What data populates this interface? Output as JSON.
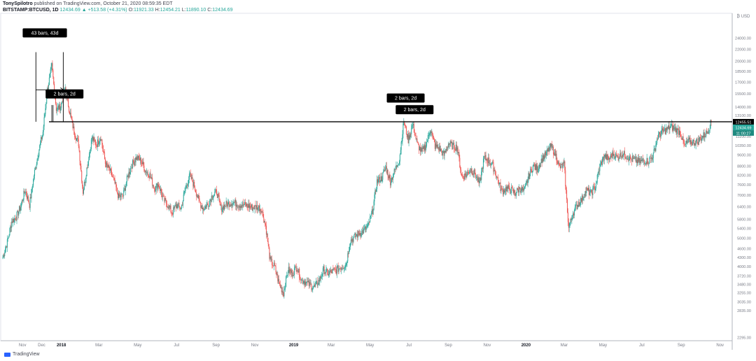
{
  "header": {
    "author": "TonySpilotro",
    "published_text": "published on TradingView.com, October 21, 2020 08:59:35 EDT",
    "symbol": "BITSTAMP:BTCUSD, 1D",
    "price": "12434.69",
    "change": "+513.58 (+4.31%)",
    "open": "11921.33",
    "high": "12454.21",
    "low": "11890.10",
    "close": "12434.69",
    "label_o": "O:",
    "label_h": "H:",
    "label_l": "L:",
    "label_c": "C:"
  },
  "footer": {
    "logo_text": "TradingView"
  },
  "colors": {
    "up": "#26a69a",
    "down": "#ef5350",
    "line": "#000000",
    "tag_bg": "#000000"
  },
  "chart_data": {
    "type": "candlestick",
    "currency_label": "₿ USD",
    "x_ticks": [
      "Nov",
      "Dec",
      "2018",
      "Mar",
      "May",
      "Jul",
      "Sep",
      "Nov",
      "2019",
      "Mar",
      "May",
      "Jul",
      "Sep",
      "Nov",
      "2020",
      "Mar",
      "May",
      "Jul",
      "Sep",
      "Nov"
    ],
    "x_range": [
      "2017-10-01",
      "2020-11-20"
    ],
    "y_ticks": [
      2295,
      2835,
      3035,
      3255,
      3480,
      3720,
      4000,
      4300,
      4600,
      5000,
      5400,
      5800,
      6400,
      7000,
      7600,
      8200,
      8800,
      9600,
      10350,
      11100,
      12100,
      13100,
      14000,
      15500,
      17000,
      18500,
      20000,
      22000,
      24000
    ],
    "y_scale": "log",
    "y_range": [
      2250,
      29000
    ],
    "price_labels": [
      {
        "value": 12455.51,
        "text": "12455.51",
        "style": "line"
      },
      {
        "value": 12434.69,
        "text": "12434.69",
        "style": "up"
      },
      {
        "value": 11900.27,
        "text": "11:00:27",
        "style": "up-dark"
      }
    ],
    "horizontal_line": {
      "value": 12455.51
    },
    "annotations": [
      {
        "text": "43 bars, 43d",
        "date": "2017-12-06",
        "price": 25000
      },
      {
        "text": "2 bars, 2d",
        "date": "2018-01-06",
        "price": 15500
      },
      {
        "text": "2 bars, 2d",
        "date": "2019-06-26",
        "price": 15000
      },
      {
        "text": "2 bars, 2d",
        "date": "2019-07-10",
        "price": 13700
      }
    ],
    "date_range_measure": {
      "start": "2017-11-22",
      "end": "2018-01-04",
      "from_price": 12455.51,
      "to_price": 21500,
      "arrow_price": 16000
    },
    "bars_2d_1": {
      "start": "2017-12-17",
      "end": "2017-12-19"
    },
    "series": [
      {
        "date": "2017-10-01",
        "close": 4300
      },
      {
        "date": "2017-10-08",
        "close": 4850
      },
      {
        "date": "2017-10-15",
        "close": 5700
      },
      {
        "date": "2017-10-22",
        "close": 5900
      },
      {
        "date": "2017-10-29",
        "close": 6400
      },
      {
        "date": "2017-11-05",
        "close": 7300
      },
      {
        "date": "2017-11-12",
        "close": 6500
      },
      {
        "date": "2017-11-19",
        "close": 8200
      },
      {
        "date": "2017-11-26",
        "close": 9800
      },
      {
        "date": "2017-12-03",
        "close": 11500
      },
      {
        "date": "2017-12-10",
        "close": 16000
      },
      {
        "date": "2017-12-17",
        "close": 19300
      },
      {
        "date": "2017-12-24",
        "close": 13800
      },
      {
        "date": "2017-12-31",
        "close": 14000
      },
      {
        "date": "2018-01-07",
        "close": 16200
      },
      {
        "date": "2018-01-14",
        "close": 13500
      },
      {
        "date": "2018-01-21",
        "close": 11500
      },
      {
        "date": "2018-01-28",
        "close": 10500
      },
      {
        "date": "2018-02-04",
        "close": 7200
      },
      {
        "date": "2018-02-11",
        "close": 8900
      },
      {
        "date": "2018-02-18",
        "close": 11000
      },
      {
        "date": "2018-02-25",
        "close": 10400
      },
      {
        "date": "2018-03-04",
        "close": 11100
      },
      {
        "date": "2018-03-11",
        "close": 9000
      },
      {
        "date": "2018-03-18",
        "close": 8500
      },
      {
        "date": "2018-03-25",
        "close": 7800
      },
      {
        "date": "2018-04-01",
        "close": 6900
      },
      {
        "date": "2018-04-08",
        "close": 7000
      },
      {
        "date": "2018-04-15",
        "close": 8100
      },
      {
        "date": "2018-04-22",
        "close": 8900
      },
      {
        "date": "2018-04-29",
        "close": 9400
      },
      {
        "date": "2018-05-06",
        "close": 9200
      },
      {
        "date": "2018-05-13",
        "close": 8500
      },
      {
        "date": "2018-05-20",
        "close": 8200
      },
      {
        "date": "2018-05-27",
        "close": 7400
      },
      {
        "date": "2018-06-03",
        "close": 7600
      },
      {
        "date": "2018-06-10",
        "close": 6800
      },
      {
        "date": "2018-06-17",
        "close": 6500
      },
      {
        "date": "2018-06-24",
        "close": 6100
      },
      {
        "date": "2018-07-01",
        "close": 6500
      },
      {
        "date": "2018-07-08",
        "close": 6300
      },
      {
        "date": "2018-07-15",
        "close": 7400
      },
      {
        "date": "2018-07-22",
        "close": 8200
      },
      {
        "date": "2018-07-29",
        "close": 7500
      },
      {
        "date": "2018-08-05",
        "close": 6700
      },
      {
        "date": "2018-08-12",
        "close": 6300
      },
      {
        "date": "2018-08-19",
        "close": 6500
      },
      {
        "date": "2018-08-26",
        "close": 7000
      },
      {
        "date": "2018-09-02",
        "close": 7200
      },
      {
        "date": "2018-09-09",
        "close": 6300
      },
      {
        "date": "2018-09-16",
        "close": 6500
      },
      {
        "date": "2018-09-23",
        "close": 6600
      },
      {
        "date": "2018-09-30",
        "close": 6600
      },
      {
        "date": "2018-10-07",
        "close": 6500
      },
      {
        "date": "2018-10-14",
        "close": 6500
      },
      {
        "date": "2018-10-21",
        "close": 6450
      },
      {
        "date": "2018-10-28",
        "close": 6350
      },
      {
        "date": "2018-11-04",
        "close": 6400
      },
      {
        "date": "2018-11-11",
        "close": 6300
      },
      {
        "date": "2018-11-18",
        "close": 5500
      },
      {
        "date": "2018-11-25",
        "close": 4200
      },
      {
        "date": "2018-12-02",
        "close": 4000
      },
      {
        "date": "2018-12-09",
        "close": 3500
      },
      {
        "date": "2018-12-16",
        "close": 3250
      },
      {
        "date": "2018-12-23",
        "close": 3900
      },
      {
        "date": "2018-12-30",
        "close": 3800
      },
      {
        "date": "2019-01-06",
        "close": 4000
      },
      {
        "date": "2019-01-13",
        "close": 3600
      },
      {
        "date": "2019-01-20",
        "close": 3550
      },
      {
        "date": "2019-01-27",
        "close": 3450
      },
      {
        "date": "2019-02-03",
        "close": 3400
      },
      {
        "date": "2019-02-10",
        "close": 3600
      },
      {
        "date": "2019-02-17",
        "close": 3900
      },
      {
        "date": "2019-02-24",
        "close": 3800
      },
      {
        "date": "2019-03-03",
        "close": 3850
      },
      {
        "date": "2019-03-10",
        "close": 3900
      },
      {
        "date": "2019-03-17",
        "close": 4000
      },
      {
        "date": "2019-03-24",
        "close": 4050
      },
      {
        "date": "2019-03-31",
        "close": 4900
      },
      {
        "date": "2019-04-07",
        "close": 5050
      },
      {
        "date": "2019-04-14",
        "close": 5200
      },
      {
        "date": "2019-04-21",
        "close": 5300
      },
      {
        "date": "2019-04-28",
        "close": 5500
      },
      {
        "date": "2019-05-05",
        "close": 6200
      },
      {
        "date": "2019-05-12",
        "close": 7800
      },
      {
        "date": "2019-05-19",
        "close": 8000
      },
      {
        "date": "2019-05-26",
        "close": 8700
      },
      {
        "date": "2019-06-02",
        "close": 7800
      },
      {
        "date": "2019-06-09",
        "close": 8500
      },
      {
        "date": "2019-06-16",
        "close": 9300
      },
      {
        "date": "2019-06-23",
        "close": 12500
      },
      {
        "date": "2019-06-30",
        "close": 10800
      },
      {
        "date": "2019-07-07",
        "close": 12200
      },
      {
        "date": "2019-07-14",
        "close": 10500
      },
      {
        "date": "2019-07-21",
        "close": 9800
      },
      {
        "date": "2019-07-28",
        "close": 10400
      },
      {
        "date": "2019-08-04",
        "close": 11800
      },
      {
        "date": "2019-08-11",
        "close": 10300
      },
      {
        "date": "2019-08-18",
        "close": 10100
      },
      {
        "date": "2019-08-25",
        "close": 9600
      },
      {
        "date": "2019-09-01",
        "close": 10500
      },
      {
        "date": "2019-09-08",
        "close": 10300
      },
      {
        "date": "2019-09-15",
        "close": 10200
      },
      {
        "date": "2019-09-22",
        "close": 8100
      },
      {
        "date": "2019-09-29",
        "close": 8200
      },
      {
        "date": "2019-10-06",
        "close": 8600
      },
      {
        "date": "2019-10-13",
        "close": 8300
      },
      {
        "date": "2019-10-20",
        "close": 7600
      },
      {
        "date": "2019-10-27",
        "close": 9400
      },
      {
        "date": "2019-11-03",
        "close": 9200
      },
      {
        "date": "2019-11-10",
        "close": 8800
      },
      {
        "date": "2019-11-17",
        "close": 8000
      },
      {
        "date": "2019-11-24",
        "close": 7200
      },
      {
        "date": "2019-12-01",
        "close": 7400
      },
      {
        "date": "2019-12-08",
        "close": 7300
      },
      {
        "date": "2019-12-15",
        "close": 7100
      },
      {
        "date": "2019-12-22",
        "close": 7400
      },
      {
        "date": "2019-12-29",
        "close": 7200
      },
      {
        "date": "2020-01-05",
        "close": 8100
      },
      {
        "date": "2020-01-12",
        "close": 8800
      },
      {
        "date": "2020-01-19",
        "close": 8600
      },
      {
        "date": "2020-01-26",
        "close": 9300
      },
      {
        "date": "2020-02-02",
        "close": 9700
      },
      {
        "date": "2020-02-09",
        "close": 10300
      },
      {
        "date": "2020-02-16",
        "close": 9700
      },
      {
        "date": "2020-02-23",
        "close": 8700
      },
      {
        "date": "2020-03-01",
        "close": 8900
      },
      {
        "date": "2020-03-08",
        "close": 5400
      },
      {
        "date": "2020-03-15",
        "close": 6100
      },
      {
        "date": "2020-03-22",
        "close": 6500
      },
      {
        "date": "2020-03-29",
        "close": 6800
      },
      {
        "date": "2020-04-05",
        "close": 7300
      },
      {
        "date": "2020-04-12",
        "close": 7100
      },
      {
        "date": "2020-04-19",
        "close": 7500
      },
      {
        "date": "2020-04-26",
        "close": 8800
      },
      {
        "date": "2020-05-03",
        "close": 9500
      },
      {
        "date": "2020-05-10",
        "close": 9300
      },
      {
        "date": "2020-05-17",
        "close": 9700
      },
      {
        "date": "2020-05-24",
        "close": 9400
      },
      {
        "date": "2020-05-31",
        "close": 9700
      },
      {
        "date": "2020-06-07",
        "close": 9500
      },
      {
        "date": "2020-06-14",
        "close": 9300
      },
      {
        "date": "2020-06-21",
        "close": 9200
      },
      {
        "date": "2020-06-28",
        "close": 9100
      },
      {
        "date": "2020-07-05",
        "close": 9200
      },
      {
        "date": "2020-07-12",
        "close": 9150
      },
      {
        "date": "2020-07-19",
        "close": 9600
      },
      {
        "date": "2020-07-26",
        "close": 11100
      },
      {
        "date": "2020-08-02",
        "close": 11500
      },
      {
        "date": "2020-08-09",
        "close": 11700
      },
      {
        "date": "2020-08-16",
        "close": 12000
      },
      {
        "date": "2020-08-23",
        "close": 11700
      },
      {
        "date": "2020-08-30",
        "close": 11500
      },
      {
        "date": "2020-09-06",
        "close": 10300
      },
      {
        "date": "2020-09-13",
        "close": 10700
      },
      {
        "date": "2020-09-20",
        "close": 10600
      },
      {
        "date": "2020-09-27",
        "close": 10700
      },
      {
        "date": "2020-10-04",
        "close": 11100
      },
      {
        "date": "2020-10-11",
        "close": 11400
      },
      {
        "date": "2020-10-18",
        "close": 12434.69
      }
    ]
  }
}
